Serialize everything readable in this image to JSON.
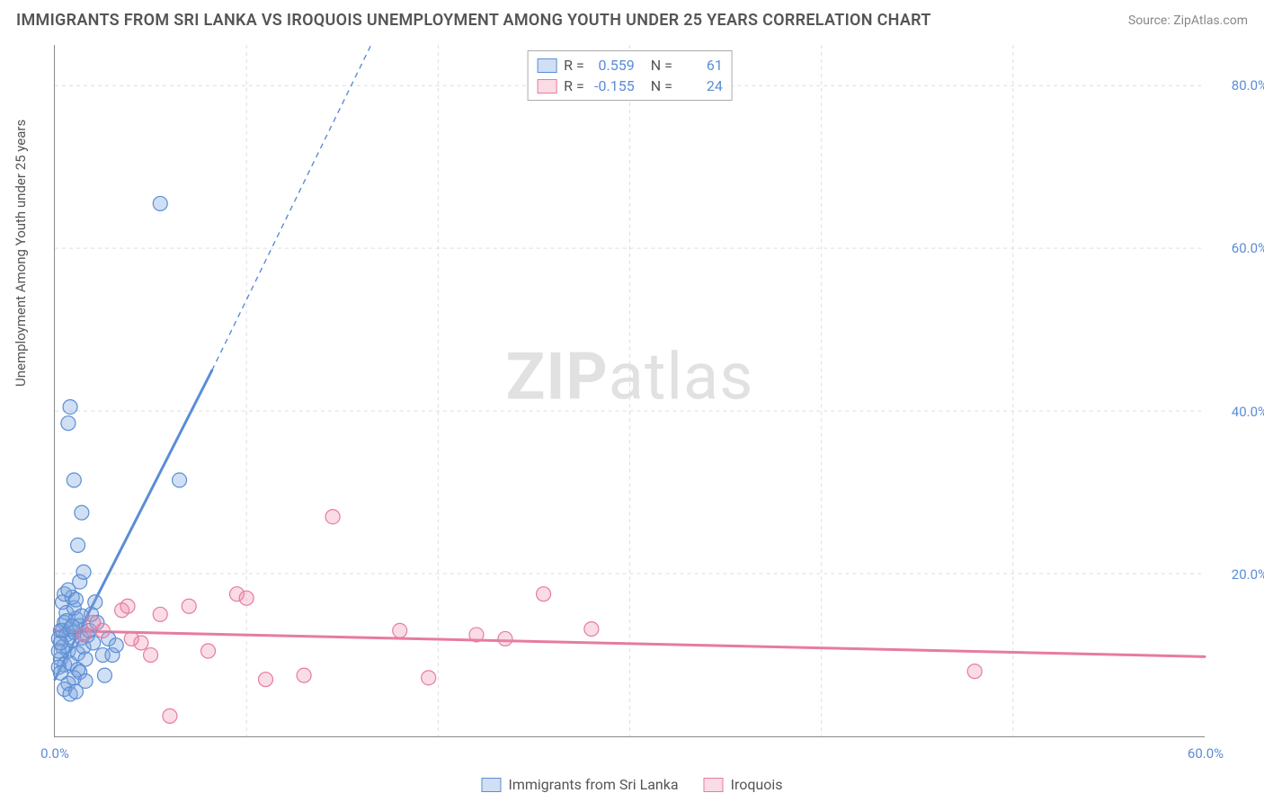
{
  "title": "IMMIGRANTS FROM SRI LANKA VS IROQUOIS UNEMPLOYMENT AMONG YOUTH UNDER 25 YEARS CORRELATION CHART",
  "source": "Source: ZipAtlas.com",
  "watermark_bold": "ZIP",
  "watermark_rest": "atlas",
  "y_axis_label": "Unemployment Among Youth under 25 years",
  "chart": {
    "type": "scatter",
    "background_color": "#ffffff",
    "grid_color": "#dddddd",
    "axis_color": "#888888",
    "xlim": [
      0,
      60
    ],
    "ylim": [
      0,
      85
    ],
    "x_ticks": [
      0.0,
      60.0
    ],
    "x_tick_labels": [
      "0.0%",
      "60.0%"
    ],
    "y_ticks": [
      20.0,
      40.0,
      60.0,
      80.0
    ],
    "y_tick_labels": [
      "20.0%",
      "40.0%",
      "60.0%",
      "80.0%"
    ],
    "x_minor_gridlines": [
      10,
      20,
      30,
      40,
      50
    ],
    "marker_radius": 8,
    "marker_stroke_width": 1.2,
    "series": [
      {
        "name": "Immigrants from Sri Lanka",
        "color_fill": "rgba(120,163,220,0.35)",
        "color_stroke": "#5b8dd6",
        "r": "0.559",
        "n": "61",
        "trend": {
          "x1": 0,
          "y1": 7,
          "x2": 8.2,
          "y2": 45,
          "x2_ext": 16.5,
          "y2_ext": 85,
          "width_solid": 3,
          "width_dash": 1.4,
          "dash": "6,5"
        },
        "points": [
          [
            0.2,
            12
          ],
          [
            0.3,
            13
          ],
          [
            0.4,
            11
          ],
          [
            0.5,
            14
          ],
          [
            0.6,
            12.5
          ],
          [
            0.7,
            10.5
          ],
          [
            0.8,
            13.2
          ],
          [
            0.9,
            11.8
          ],
          [
            1.0,
            12.8
          ],
          [
            1.1,
            14.5
          ],
          [
            1.2,
            10.2
          ],
          [
            1.3,
            13.6
          ],
          [
            1.4,
            12.1
          ],
          [
            0.3,
            9.5
          ],
          [
            0.5,
            8.8
          ],
          [
            0.6,
            15.2
          ],
          [
            0.8,
            9.0
          ],
          [
            1.0,
            15.8
          ],
          [
            1.2,
            8.2
          ],
          [
            1.5,
            11.0
          ],
          [
            1.7,
            12.4
          ],
          [
            0.4,
            16.5
          ],
          [
            1.0,
            7.2
          ],
          [
            1.3,
            7.9
          ],
          [
            1.6,
            6.8
          ],
          [
            0.9,
            17.1
          ],
          [
            0.7,
            6.5
          ],
          [
            1.8,
            13.0
          ],
          [
            2.0,
            11.5
          ],
          [
            2.2,
            14.0
          ],
          [
            2.5,
            10.0
          ],
          [
            2.8,
            12.0
          ],
          [
            0.5,
            5.8
          ],
          [
            0.8,
            5.2
          ],
          [
            1.1,
            5.5
          ],
          [
            1.3,
            19.0
          ],
          [
            1.5,
            20.2
          ],
          [
            1.2,
            23.5
          ],
          [
            1.4,
            27.5
          ],
          [
            1.0,
            31.5
          ],
          [
            0.7,
            38.5
          ],
          [
            0.8,
            40.5
          ],
          [
            6.5,
            31.5
          ],
          [
            5.5,
            65.5
          ],
          [
            3.0,
            10.0
          ],
          [
            3.2,
            11.2
          ],
          [
            2.6,
            7.5
          ],
          [
            2.1,
            16.5
          ],
          [
            1.9,
            15.0
          ],
          [
            0.2,
            10.5
          ],
          [
            0.3,
            11.5
          ],
          [
            0.4,
            13.0
          ],
          [
            0.6,
            14.2
          ],
          [
            0.2,
            8.5
          ],
          [
            0.3,
            7.8
          ],
          [
            0.5,
            17.5
          ],
          [
            0.7,
            18.0
          ],
          [
            1.1,
            16.8
          ],
          [
            1.4,
            14.8
          ],
          [
            0.9,
            13.5
          ],
          [
            1.6,
            9.5
          ]
        ]
      },
      {
        "name": "Iroquois",
        "color_fill": "rgba(238,140,170,0.30)",
        "color_stroke": "#e77ba0",
        "r": "-0.155",
        "n": "24",
        "trend": {
          "x1": 0,
          "y1": 13.0,
          "x2": 60,
          "y2": 9.8,
          "width_solid": 3
        },
        "points": [
          [
            1.5,
            12.5
          ],
          [
            2.5,
            13.0
          ],
          [
            3.5,
            15.5
          ],
          [
            3.8,
            16.0
          ],
          [
            4.5,
            11.5
          ],
          [
            5.5,
            15.0
          ],
          [
            6.0,
            2.5
          ],
          [
            7.0,
            16.0
          ],
          [
            8.0,
            10.5
          ],
          [
            9.5,
            17.5
          ],
          [
            10.0,
            17.0
          ],
          [
            11.0,
            7.0
          ],
          [
            13.0,
            7.5
          ],
          [
            14.5,
            27.0
          ],
          [
            18.0,
            13.0
          ],
          [
            19.5,
            7.2
          ],
          [
            22.0,
            12.5
          ],
          [
            23.5,
            12.0
          ],
          [
            25.5,
            17.5
          ],
          [
            28.0,
            13.2
          ],
          [
            48.0,
            8.0
          ],
          [
            2.0,
            14.0
          ],
          [
            4.0,
            12.0
          ],
          [
            5.0,
            10.0
          ]
        ]
      }
    ]
  },
  "stats_legend_labels": {
    "r_prefix": "R  =",
    "n_prefix": "N  ="
  },
  "bottom_legend": [
    {
      "label": "Immigrants from Sri Lanka",
      "fill": "rgba(120,163,220,0.35)",
      "stroke": "#5b8dd6"
    },
    {
      "label": "Iroquois",
      "fill": "rgba(238,140,170,0.30)",
      "stroke": "#e77ba0"
    }
  ]
}
